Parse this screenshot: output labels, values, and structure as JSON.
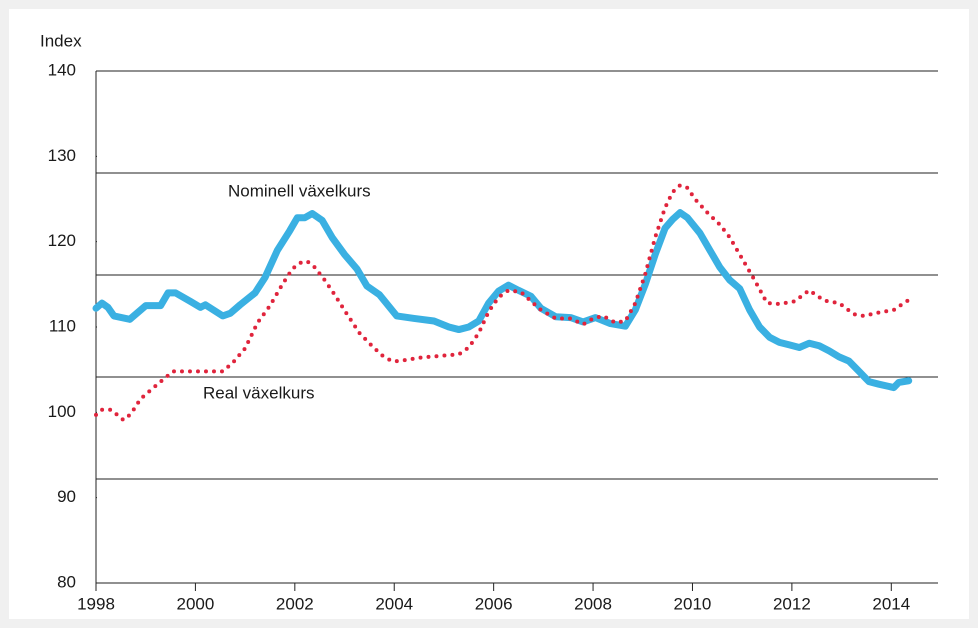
{
  "chart_data": {
    "type": "line",
    "y_label": "Index",
    "xlim": [
      1998,
      2015
    ],
    "xticks": [
      1998,
      2000,
      2002,
      2004,
      2006,
      2008,
      2010,
      2012,
      2014
    ],
    "ylim": [
      80,
      140
    ],
    "yticks": [
      80,
      90,
      100,
      110,
      120,
      130,
      140
    ],
    "series": [
      {
        "name": "Nominell växelkurs",
        "color": "#3ab0e2",
        "x": [
          1998,
          1998.12,
          1998.24,
          1998.36,
          1998.68,
          1999,
          1999.3,
          1999.45,
          1999.6,
          1999.9,
          2000.1,
          2000.2,
          2000.55,
          2000.7,
          2000.9,
          2001.2,
          2001.4,
          2001.65,
          2001.9,
          2002.05,
          2002.2,
          2002.35,
          2002.55,
          2002.75,
          2003,
          2003.25,
          2003.45,
          2003.7,
          2004.05,
          2004.4,
          2004.8,
          2005.1,
          2005.3,
          2005.5,
          2005.7,
          2005.9,
          2006.1,
          2006.3,
          2006.5,
          2006.75,
          2006.95,
          2007.25,
          2007.55,
          2007.8,
          2008.05,
          2008.35,
          2008.65,
          2008.85,
          2009.05,
          2009.25,
          2009.45,
          2009.6,
          2009.75,
          2009.9,
          2010.15,
          2010.35,
          2010.55,
          2010.75,
          2010.95,
          2011.15,
          2011.35,
          2011.55,
          2011.75,
          2011.95,
          2012.15,
          2012.35,
          2012.55,
          2012.75,
          2012.95,
          2013.15,
          2013.35,
          2013.55,
          2013.75,
          2014.05,
          2014.15,
          2014.35
        ],
        "values": [
          112.2,
          112.8,
          112.3,
          111.3,
          110.9,
          112.5,
          112.5,
          114,
          114,
          113,
          112.3,
          112.6,
          111.3,
          111.6,
          112.6,
          114,
          115.8,
          119,
          121.3,
          122.8,
          122.8,
          123.3,
          122.5,
          120.5,
          118.5,
          116.8,
          114.8,
          113.8,
          111.3,
          111,
          110.7,
          110,
          109.7,
          110,
          110.7,
          112.8,
          114.2,
          114.9,
          114.3,
          113.6,
          112.2,
          111.2,
          111.1,
          110.6,
          111.1,
          110.4,
          110.1,
          112,
          115,
          118.5,
          121.6,
          122.6,
          123.4,
          122.8,
          121,
          119,
          117,
          115.5,
          114.5,
          112,
          110,
          108.8,
          108.2,
          107.9,
          107.6,
          108.1,
          107.8,
          107.2,
          106.5,
          106,
          104.8,
          103.6,
          103.3,
          102.9,
          103.5,
          103.7
        ]
      },
      {
        "name": "Real växelkurs",
        "color": "#e0243c",
        "x": [
          1998,
          1998.12,
          1998.3,
          1998.45,
          1998.55,
          1998.7,
          1998.9,
          1999.1,
          1999.3,
          1999.55,
          1999.9,
          2000.55,
          2000.75,
          2001,
          2001.25,
          2001.5,
          2001.75,
          2001.95,
          2002.1,
          2002.25,
          2002.4,
          2002.6,
          2002.8,
          2003.05,
          2003.3,
          2003.55,
          2003.75,
          2003.95,
          2004.1,
          2004.5,
          2004.9,
          2005.3,
          2005.5,
          2005.7,
          2005.9,
          2006.1,
          2006.3,
          2006.55,
          2006.7,
          2006.95,
          2007.25,
          2007.55,
          2007.8,
          2008,
          2008.2,
          2008.45,
          2008.65,
          2008.85,
          2009.05,
          2009.25,
          2009.45,
          2009.6,
          2009.75,
          2009.9,
          2010.05,
          2010.3,
          2010.55,
          2010.75,
          2011,
          2011.25,
          2011.5,
          2011.75,
          2012.05,
          2012.35,
          2012.65,
          2012.95,
          2013.25,
          2013.45,
          2013.75,
          2014.05,
          2014.3,
          2014.4
        ],
        "values": [
          99.7,
          100.3,
          100.3,
          99.6,
          99.1,
          99.8,
          101.6,
          102.6,
          103.6,
          104.8,
          104.8,
          104.8,
          105.8,
          107.5,
          110.5,
          112.5,
          115,
          116.8,
          117.5,
          117.7,
          117,
          115.5,
          113.8,
          111.5,
          109.3,
          107.8,
          106.7,
          106,
          106,
          106.4,
          106.6,
          106.8,
          107.6,
          109.3,
          111.8,
          113.5,
          114.3,
          114.1,
          113.3,
          112,
          111,
          111,
          110.3,
          111,
          111.3,
          110.5,
          110.7,
          112.8,
          116.2,
          120.5,
          124,
          125.8,
          126.6,
          126.3,
          125,
          123.4,
          122,
          120.5,
          118,
          115.5,
          112.8,
          112.7,
          113,
          114.3,
          113.1,
          112.8,
          111.5,
          111.3,
          111.7,
          112,
          113,
          113.3
        ]
      }
    ]
  }
}
